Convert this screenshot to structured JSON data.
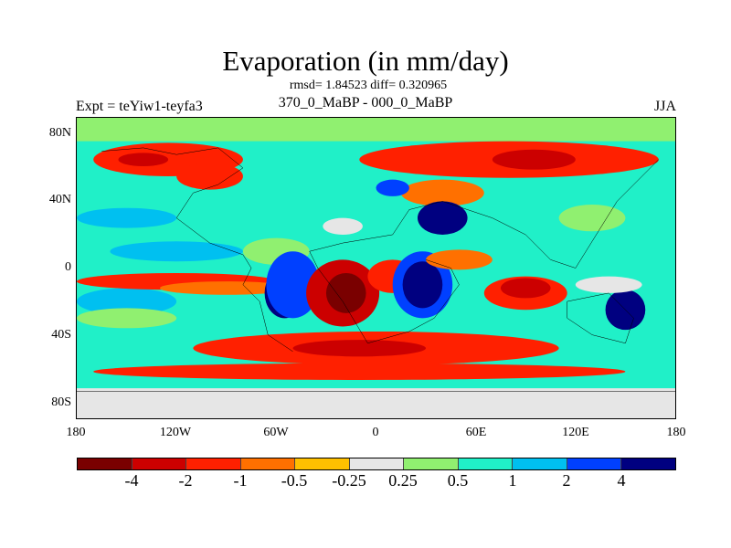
{
  "title": "Evaporation (in mm/day)",
  "stats": "rmsd= 1.84523 diff= 0.320965",
  "subtitle": "370_0_MaBP - 000_0_MaBP",
  "experiment": "Expt = teYiw1-teyfa3",
  "season": "JJA",
  "chart_data": {
    "type": "heatmap",
    "title": "Evaporation (in mm/day)",
    "x_ticks": [
      "180",
      "120W",
      "60W",
      "0",
      "60E",
      "120E",
      "180"
    ],
    "y_ticks": [
      "80N",
      "40N",
      "0",
      "40S",
      "80S"
    ],
    "xlim": [
      -180,
      180
    ],
    "ylim": [
      -90,
      90
    ],
    "colorbar": {
      "labels": [
        "-4",
        "-2",
        "-1",
        "-0.5",
        "-0.25",
        "0.25",
        "0.5",
        "1",
        "2",
        "4"
      ],
      "colors": [
        "#7a0000",
        "#cc0000",
        "#ff2000",
        "#ff7000",
        "#ffc000",
        "#e6e6e6",
        "#90f070",
        "#20f0c8",
        "#00c0f0",
        "#0040ff",
        "#000080"
      ]
    }
  }
}
